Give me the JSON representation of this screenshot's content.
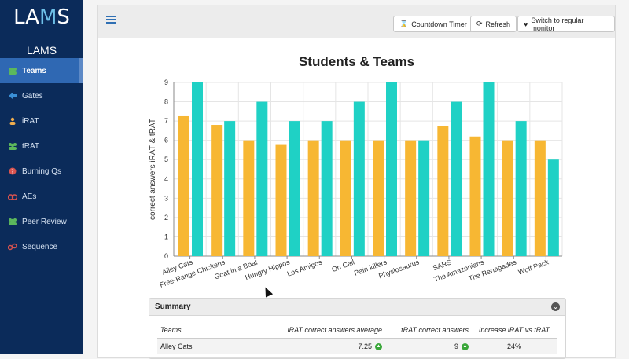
{
  "app": {
    "logo_main": "LA",
    "logo_accent": "M",
    "logo_end": "S",
    "section_title": "LAMS"
  },
  "sidebar": {
    "items": [
      {
        "label": "Teams",
        "icon": "users-icon",
        "active": true
      },
      {
        "label": "Gates",
        "icon": "gate-icon",
        "active": false
      },
      {
        "label": "iRAT",
        "icon": "user-icon",
        "active": false
      },
      {
        "label": "tRAT",
        "icon": "users-icon",
        "active": false
      },
      {
        "label": "Burning Qs",
        "icon": "question-icon",
        "active": false
      },
      {
        "label": "AEs",
        "icon": "ae-icon",
        "active": false
      },
      {
        "label": "Peer Review",
        "icon": "users-icon",
        "active": false
      },
      {
        "label": "Sequence",
        "icon": "sequence-icon",
        "active": false
      }
    ]
  },
  "toolbar": {
    "countdown_label": "Countdown Timer",
    "refresh_label": "Refresh",
    "switch_label": "Switch to regular monitor"
  },
  "page_title": "Students & Teams",
  "chart_data": {
    "type": "bar",
    "ylabel": "correct answers iRAT & tRAT",
    "ylim": [
      0,
      9
    ],
    "yticks": [
      "0",
      "1",
      "2",
      "3",
      "4",
      "5",
      "6",
      "7",
      "8",
      "9"
    ],
    "grid": true,
    "categories": [
      "Alley Cats",
      "Free-Range Chickens",
      "Goat in a Boat",
      "Hungry Hippos",
      "Los Amigos",
      "On Call",
      "Pain killers",
      "Physiosaurus",
      "SARS",
      "The Amazonians",
      "The Renagades",
      "Wolf Pack"
    ],
    "series": [
      {
        "color": "#f7b733",
        "values": [
          7.25,
          6.8,
          6,
          5.8,
          6,
          6,
          6,
          6,
          6.75,
          6.2,
          6,
          6
        ]
      },
      {
        "color": "#1fd1c5",
        "values": [
          9,
          7,
          8,
          7,
          7,
          8,
          9,
          6,
          8,
          9,
          7,
          5
        ]
      }
    ]
  },
  "summary": {
    "title": "Summary",
    "headers": [
      "Teams",
      "iRAT correct answers average",
      "tRAT correct answers",
      "Increase iRAT vs tRAT"
    ],
    "rows": [
      {
        "team": "Alley Cats",
        "irat": "7.25",
        "trat": "9",
        "increase": "24%"
      }
    ]
  }
}
